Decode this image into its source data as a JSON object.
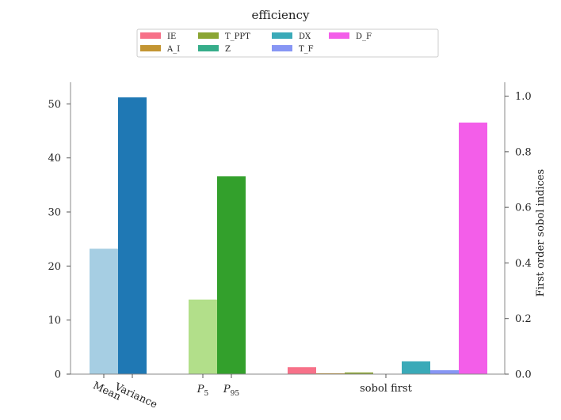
{
  "chart_data": {
    "type": "bar",
    "title": "efficiency",
    "left_axis": {
      "ylim": [
        0,
        54
      ],
      "ticks": [
        0,
        10,
        20,
        30,
        40,
        50
      ]
    },
    "right_axis": {
      "label": "First order sobol indices",
      "ylim": [
        0,
        1.05
      ],
      "ticks": [
        "0.0",
        "0.2",
        "0.4",
        "0.6",
        "0.8",
        "1.0"
      ]
    },
    "groups": [
      {
        "axis": "left",
        "bars": [
          {
            "label": "Mean",
            "value": 23.2,
            "color": "#a6cee3"
          },
          {
            "label": "Variance",
            "value": 51.2,
            "color": "#1f78b4"
          }
        ]
      },
      {
        "axis": "left",
        "bars": [
          {
            "label": "P5",
            "value": 13.8,
            "color": "#b2df8a"
          },
          {
            "label": "P95",
            "value": 36.6,
            "color": "#33a02c"
          }
        ]
      },
      {
        "axis": "right",
        "label": "sobol first",
        "bars": [
          {
            "label": "IE",
            "value": 0.025,
            "color": "#f77189"
          },
          {
            "label": "A_I",
            "value": 0.003,
            "color": "#c39532"
          },
          {
            "label": "T_PPT",
            "value": 0.006,
            "color": "#8aa533"
          },
          {
            "label": "Z",
            "value": 0.0,
            "color": "#36ad8a"
          },
          {
            "label": "DX",
            "value": 0.046,
            "color": "#3aaab8"
          },
          {
            "label": "T_F",
            "value": 0.014,
            "color": "#8796f4"
          },
          {
            "label": "D_F",
            "value": 0.905,
            "color": "#f35ee9"
          }
        ]
      }
    ],
    "x_tick_labels": {
      "mean": "Mean",
      "variance": "Variance",
      "p5_base": "P",
      "p5_sub": "5",
      "p95_base": "P",
      "p95_sub": "95",
      "sobol": "sobol first"
    },
    "legend": {
      "placement": "top-center",
      "entries": [
        {
          "label": "IE",
          "color": "#f77189"
        },
        {
          "label": "A_I",
          "color": "#c39532"
        },
        {
          "label": "T_PPT",
          "color": "#8aa533"
        },
        {
          "label": "Z",
          "color": "#36ad8a"
        },
        {
          "label": "DX",
          "color": "#3aaab8"
        },
        {
          "label": "T_F",
          "color": "#8796f4"
        },
        {
          "label": "D_F",
          "color": "#f35ee9"
        }
      ]
    },
    "grid": false
  }
}
